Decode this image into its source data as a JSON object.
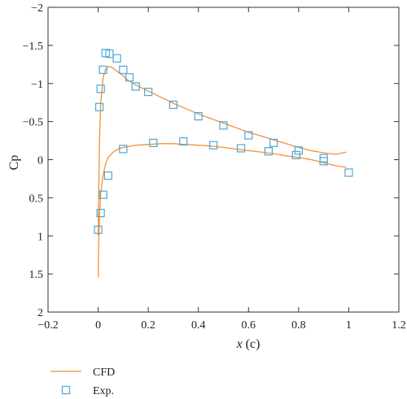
{
  "chart_data": {
    "type": "line",
    "xlabel": "x",
    "xlabel_unit": "(c)",
    "ylabel": "Cp",
    "xlim": [
      -0.2,
      1.2
    ],
    "ylim": [
      2,
      -2
    ],
    "y_inverted": true,
    "x_ticks": [
      -0.2,
      0,
      0.2,
      0.4,
      0.6,
      0.8,
      1,
      1.2
    ],
    "x_tick_labels": [
      "−0.2",
      "0",
      "0.2",
      "0.4",
      "0.6",
      "0.8",
      "1",
      "1.2"
    ],
    "y_ticks": [
      -2,
      -1.5,
      -1,
      -0.5,
      0,
      0.5,
      1,
      1.5,
      2
    ],
    "y_tick_labels": [
      "−2",
      "−1.5",
      "−1",
      "−0.5",
      "0",
      "0.5",
      "1",
      "1.5",
      "2"
    ],
    "grid": false,
    "legend_position": "bottom-left, below plot",
    "series": [
      {
        "name": "CFD",
        "kind": "line",
        "color": "#f5903a",
        "x": [
          0.0,
          0.002,
          0.005,
          0.01,
          0.02,
          0.03,
          0.04,
          0.05,
          0.06,
          0.08,
          0.1,
          0.12,
          0.15,
          0.2,
          0.25,
          0.3,
          0.35,
          0.4,
          0.45,
          0.5,
          0.55,
          0.6,
          0.65,
          0.7,
          0.75,
          0.8,
          0.85,
          0.9,
          0.95,
          0.99
        ],
        "y": [
          1.0,
          0.5,
          -0.2,
          -0.75,
          -1.08,
          -1.19,
          -1.22,
          -1.22,
          -1.2,
          -1.15,
          -1.1,
          -1.04,
          -0.98,
          -0.9,
          -0.82,
          -0.74,
          -0.67,
          -0.6,
          -0.54,
          -0.48,
          -0.42,
          -0.36,
          -0.31,
          -0.26,
          -0.21,
          -0.16,
          -0.12,
          -0.09,
          -0.07,
          -0.1
        ]
      },
      {
        "name": "CFD",
        "kind": "line",
        "color": "#f5903a",
        "x": [
          0.0,
          0.003,
          0.006,
          0.01,
          0.02,
          0.03,
          0.04,
          0.06,
          0.08,
          0.1,
          0.15,
          0.2,
          0.25,
          0.3,
          0.35,
          0.4,
          0.45,
          0.5,
          0.55,
          0.6,
          0.65,
          0.7,
          0.75,
          0.8,
          0.85,
          0.9,
          0.95,
          0.99
        ],
        "y": [
          1.55,
          1.0,
          0.7,
          0.45,
          0.2,
          0.05,
          -0.03,
          -0.1,
          -0.14,
          -0.16,
          -0.19,
          -0.2,
          -0.21,
          -0.21,
          -0.2,
          -0.19,
          -0.18,
          -0.16,
          -0.14,
          -0.12,
          -0.1,
          -0.08,
          -0.05,
          -0.03,
          0.0,
          0.04,
          0.08,
          0.1
        ]
      },
      {
        "name": "Exp.",
        "kind": "scatter",
        "color": "#4aa8d8",
        "x": [
          0.005,
          0.01,
          0.02,
          0.03,
          0.045,
          0.075,
          0.1,
          0.125,
          0.15,
          0.2,
          0.3,
          0.4,
          0.5,
          0.6,
          0.7,
          0.8,
          0.9,
          0.0,
          0.01,
          0.02,
          0.04,
          0.1,
          0.22,
          0.34,
          0.46,
          0.57,
          0.68,
          0.79,
          0.9,
          1.0
        ],
        "y": [
          -0.69,
          -0.93,
          -1.18,
          -1.4,
          -1.39,
          -1.33,
          -1.18,
          -1.08,
          -0.96,
          -0.89,
          -0.72,
          -0.57,
          -0.45,
          -0.32,
          -0.22,
          -0.12,
          -0.02,
          0.92,
          0.7,
          0.46,
          0.21,
          -0.14,
          -0.22,
          -0.24,
          -0.19,
          -0.15,
          -0.11,
          -0.06,
          0.02,
          0.17
        ]
      }
    ],
    "legend": [
      {
        "label": "CFD",
        "kind": "line",
        "color": "#f5903a"
      },
      {
        "label": "Exp.",
        "kind": "scatter",
        "color": "#4aa8d8"
      }
    ]
  }
}
